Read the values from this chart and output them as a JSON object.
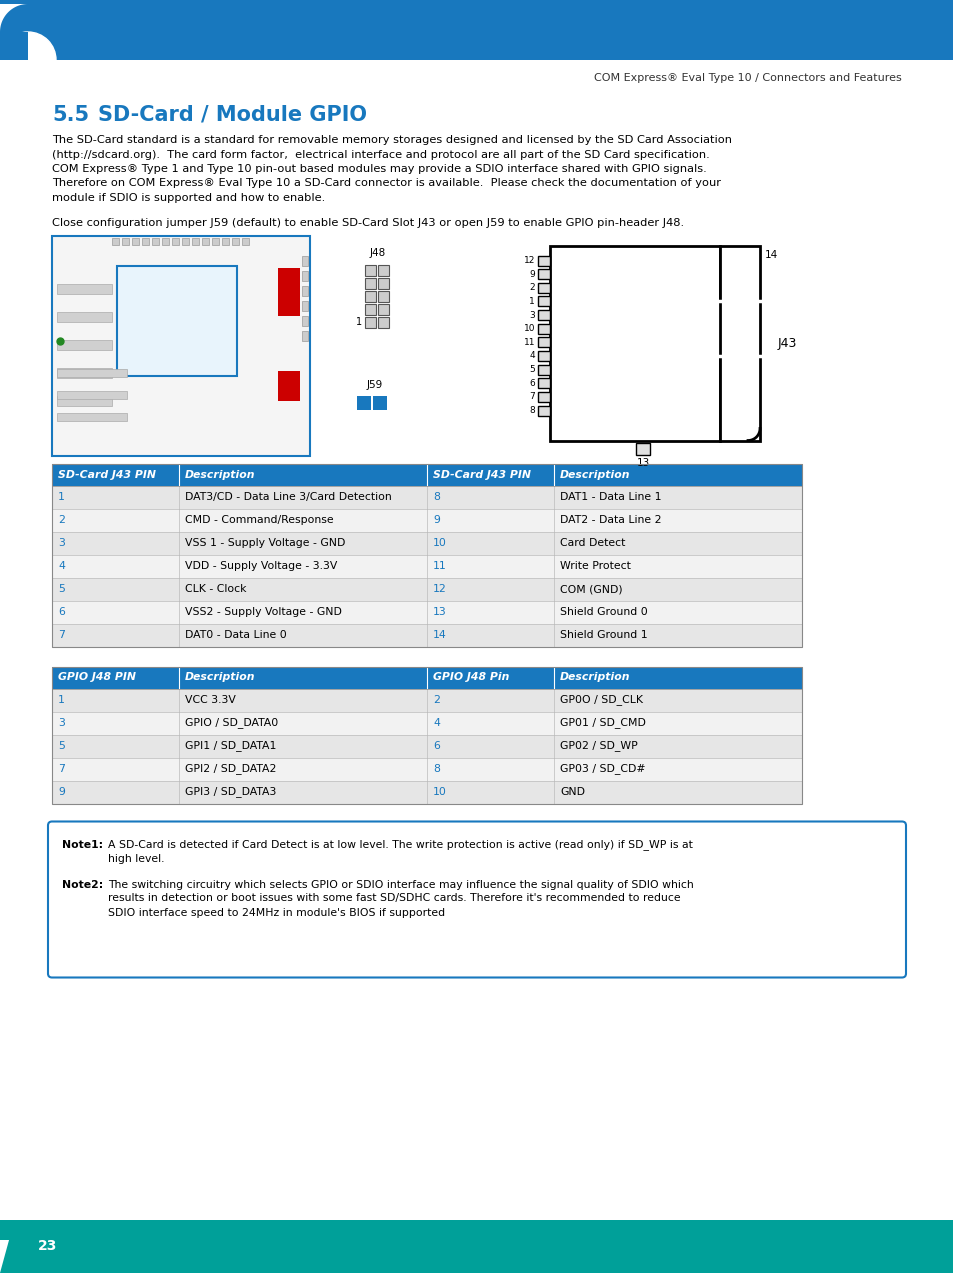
{
  "header_text": "COM Express® Eval Type 10 / Connectors and Features",
  "header_bg_color": "#1878be",
  "table_header_color": "#1878be",
  "table_header_text_color": "#ffffff",
  "table_row_odd": "#e6e6e6",
  "table_row_even": "#f2f2f2",
  "pin_color": "#1878be",
  "footer_bg_color": "#00a099",
  "footer_text": "23",
  "sd_table_headers": [
    "SD-Card J43 PIN",
    "Description",
    "SD-Card J43 PIN",
    "Description"
  ],
  "sd_table_rows": [
    [
      "1",
      "DAT3/CD - Data Line 3/Card Detection",
      "8",
      "DAT1 - Data Line 1"
    ],
    [
      "2",
      "CMD - Command/Response",
      "9",
      "DAT2 - Data Line 2"
    ],
    [
      "3",
      "VSS 1 - Supply Voltage - GND",
      "10",
      "Card Detect"
    ],
    [
      "4",
      "VDD - Supply Voltage - 3.3V",
      "11",
      "Write Protect"
    ],
    [
      "5",
      "CLK - Clock",
      "12",
      "COM (GND)"
    ],
    [
      "6",
      "VSS2 - Supply Voltage - GND",
      "13",
      "Shield Ground 0"
    ],
    [
      "7",
      "DAT0 - Data Line 0",
      "14",
      "Shield Ground 1"
    ]
  ],
  "gpio_table_headers": [
    "GPIO J48 PIN",
    "Description",
    "GPIO J48 Pin",
    "Description"
  ],
  "gpio_table_rows": [
    [
      "1",
      "VCC 3.3V",
      "2",
      "GP0O / SD_CLK"
    ],
    [
      "3",
      "GPIO / SD_DATA0",
      "4",
      "GP01 / SD_CMD"
    ],
    [
      "5",
      "GPI1 / SD_DATA1",
      "6",
      "GP02 / SD_WP"
    ],
    [
      "7",
      "GPI2 / SD_DATA2",
      "8",
      "GP03 / SD_CD#"
    ],
    [
      "9",
      "GPI3 / SD_DATA3",
      "10",
      "GND"
    ]
  ],
  "body_lines": [
    "The SD-Card standard is a standard for removable memory storages designed and licensed by the SD Card Association",
    "(http://sdcard.org).  The card form factor,  electrical interface and protocol are all part of the SD Card specification.",
    "COM Express® Type 1 and Type 10 pin-out based modules may provide a SDIO interface shared with GPIO signals.",
    "Therefore on COM Express® Eval Type 10 a SD-Card connector is available.  Please check the documentation of your",
    "module if SDIO is supported and how to enable."
  ],
  "config_text": "Close configuration jumper J59 (default) to enable SD-Card Slot J43 or open J59 to enable GPIO pin-header J48.",
  "note1_label": "Note1:",
  "note1_line1": "A SD-Card is detected if Card Detect is at low level. The write protection is active (read only) if SD_WP is at",
  "note1_line2": "high level.",
  "note2_label": "Note2:",
  "note2_line1": "The switching circuitry which selects GPIO or SDIO interface may influence the signal quality of SDIO which",
  "note2_line2": "results in detection or boot issues with some fast SD/SDHC cards. Therefore it's recommended to reduce",
  "note2_line3": "SDIO interface speed to 24MHz in module's BIOS if supported"
}
